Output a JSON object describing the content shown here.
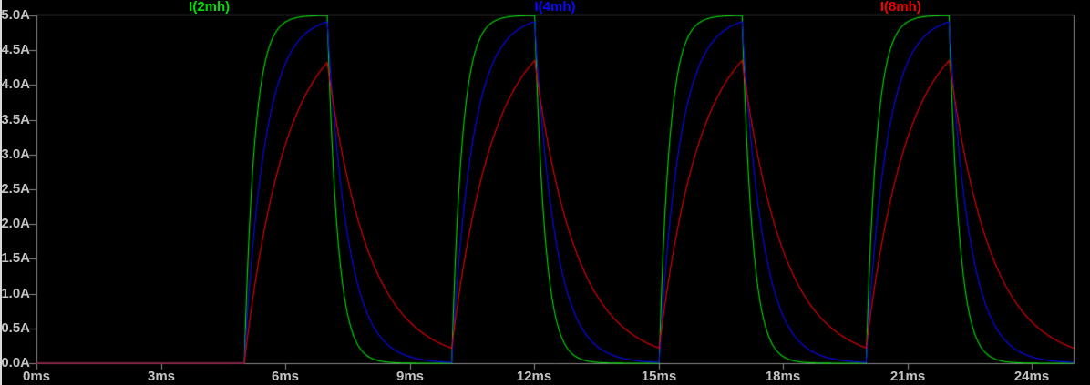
{
  "window": {
    "kind": "waveform-viewer-pane",
    "background": "#000000",
    "axis_color": "#8a8a8a",
    "text_color": "#c3c3c3"
  },
  "chart_data": {
    "type": "line",
    "title": "",
    "grid": false,
    "legend_position": "top",
    "x_axis": {
      "unit": "ms",
      "min": 0,
      "max": 25,
      "ticks": [
        0,
        3,
        6,
        9,
        12,
        15,
        18,
        21,
        24
      ],
      "tick_labels": [
        "0ms",
        "3ms",
        "6ms",
        "9ms",
        "12ms",
        "15ms",
        "18ms",
        "21ms",
        "24ms"
      ]
    },
    "y_axis": {
      "unit": "A",
      "min": 0,
      "max": 5,
      "ticks": [
        5.0,
        4.5,
        4.0,
        3.5,
        3.0,
        2.5,
        2.0,
        1.5,
        1.0,
        0.5,
        0.0
      ],
      "tick_labels": [
        "5.0A",
        "4.5A",
        "4.0A",
        "3.5A",
        "3.0A",
        "2.5A",
        "2.0A",
        "1.5A",
        "1.0A",
        "0.5A",
        "0.0A"
      ]
    },
    "excitation": {
      "type": "pulse",
      "level_a": 5.0,
      "on_intervals_ms": [
        [
          5,
          7
        ],
        [
          10,
          12
        ],
        [
          15,
          17
        ],
        [
          20,
          22
        ]
      ],
      "period_ms": 5,
      "on_time_ms": 2,
      "first_rise_ms": 5
    },
    "series": [
      {
        "name": "I(2mh)",
        "inductance": "2mH",
        "color": "#00e000",
        "tau_ms": 0.25,
        "steady_state_a": 5.0,
        "peak_a": 5.0,
        "value_at_cycle_end_a": 0.0
      },
      {
        "name": "I(4mh)",
        "inductance": "4mH",
        "color": "#0a0aff",
        "tau_ms": 0.5,
        "steady_state_a": 5.0,
        "peak_a": 4.9,
        "value_at_cycle_end_a": 0.01
      },
      {
        "name": "I(8mh)",
        "inductance": "8mH",
        "color": "#f00000",
        "tau_ms": 1.0,
        "steady_state_a": 5.0,
        "peak_a": 4.32,
        "value_at_cycle_end_a": 0.22
      }
    ]
  }
}
